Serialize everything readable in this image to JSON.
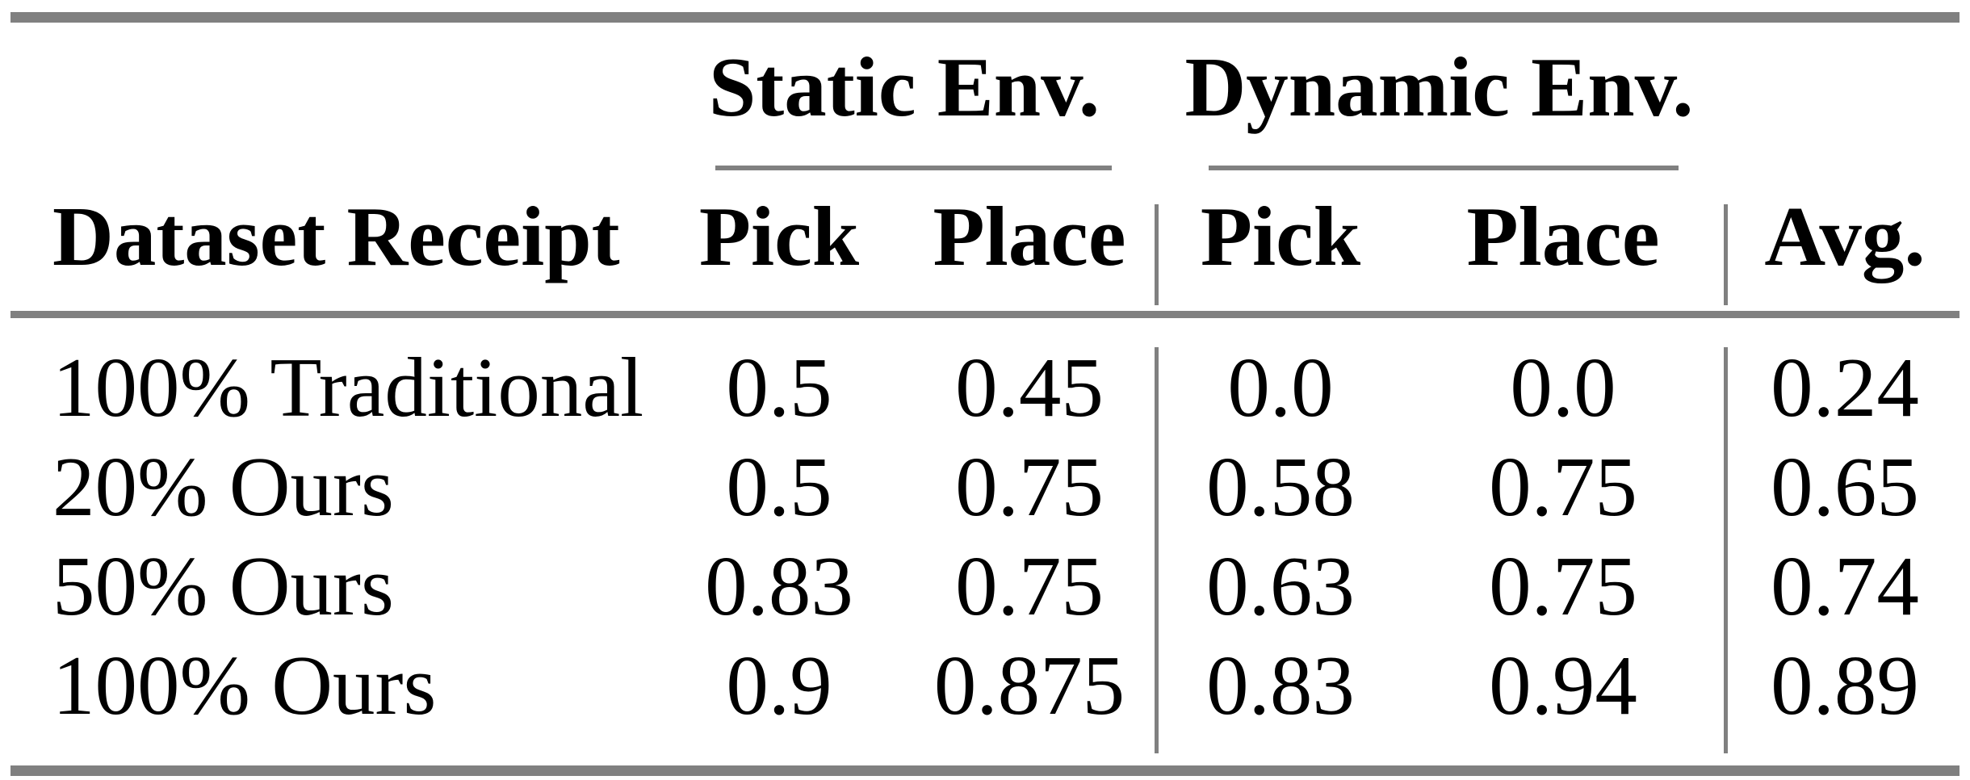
{
  "table": {
    "col_groups": {
      "static": "Static Env.",
      "dynamic": "Dynamic Env."
    },
    "headers": {
      "dataset": "Dataset Receipt",
      "static_pick": "Pick",
      "static_place": "Place",
      "dynamic_pick": "Pick",
      "dynamic_place": "Place",
      "avg": "Avg."
    },
    "rows": [
      {
        "label": "100% Traditional",
        "static_pick": "0.5",
        "static_place": "0.45",
        "dynamic_pick": "0.0",
        "dynamic_place": "0.0",
        "avg": "0.24"
      },
      {
        "label": "20% Ours",
        "static_pick": "0.5",
        "static_place": "0.75",
        "dynamic_pick": "0.58",
        "dynamic_place": "0.75",
        "avg": "0.65"
      },
      {
        "label": "50% Ours",
        "static_pick": "0.83",
        "static_place": "0.75",
        "dynamic_pick": "0.63",
        "dynamic_place": "0.75",
        "avg": "0.74"
      },
      {
        "label": "100% Ours",
        "static_pick": "0.9",
        "static_place": "0.875",
        "dynamic_pick": "0.83",
        "dynamic_place": "0.94",
        "avg": "0.89"
      }
    ],
    "colors": {
      "rule_gray": "#808080",
      "text": "#000000",
      "background": "#ffffff"
    }
  }
}
